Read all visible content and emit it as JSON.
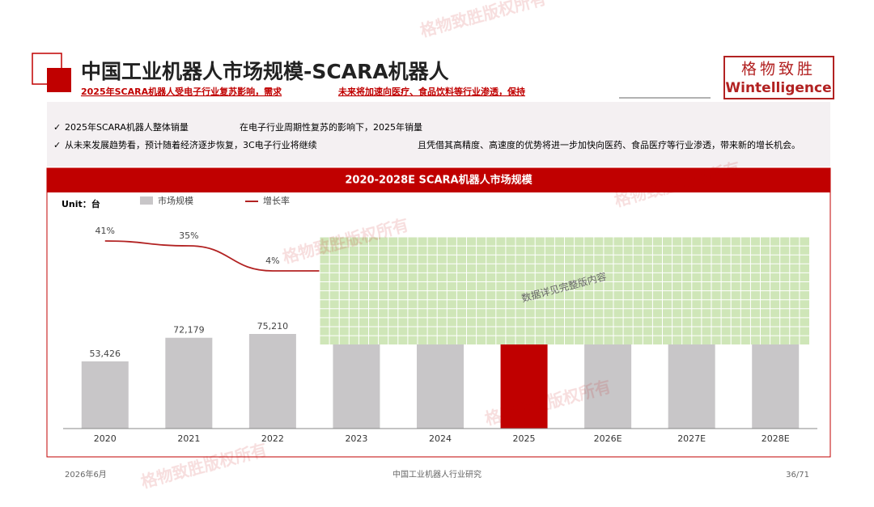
{
  "header": {
    "title": "中国工业机器人市场规模-SCARA机器人",
    "subtitle_left": "2025年SCARA机器人受电子行业复苏影响，需求",
    "subtitle_right": "未来将加速向医疗、食品饮料等行业渗透，保持",
    "logo_cn": "格物致胜",
    "logo_en": "Wintelligence"
  },
  "bullets": [
    {
      "check": "✓",
      "left": "2025年SCARA机器人整体销量",
      "right": "在电子行业周期性复苏的影响下，2025年销量"
    },
    {
      "check": "✓",
      "left": "从未来发展趋势看，预计随着经济逐步恢复，3C电子行业将继续",
      "right": "且凭借其高精度、高速度的优势将进一步加快向医药、食品医疗等行业渗透，带来新的增长机会。"
    }
  ],
  "watermark": "格物致胜版权所有",
  "chart_data": {
    "type": "bar",
    "title": "2020-2028E SCARA机器人市场规模",
    "unit": "Unit：台",
    "categories": [
      "2020",
      "2021",
      "2022",
      "2023",
      "2024",
      "2025",
      "2026E",
      "2027E",
      "2028E"
    ],
    "series": [
      {
        "name": "市场规模",
        "color": "#c8c6c8",
        "highlight_color": "#c00000",
        "highlight": "2025",
        "values": [
          53426,
          72179,
          75210,
          null,
          null,
          null,
          null,
          null,
          null
        ],
        "value_labels": [
          "53,426",
          "72,179",
          "75,210",
          null,
          null,
          null,
          null,
          null,
          null
        ]
      },
      {
        "name": "增长率",
        "type": "line",
        "axis": "y2",
        "color": "#b22222",
        "values": [
          41,
          35,
          4,
          null,
          null,
          null,
          null,
          null,
          null
        ],
        "value_labels": [
          "41%",
          "35%",
          "4%",
          null,
          null,
          null,
          null,
          null,
          null
        ]
      }
    ],
    "ylim": [
      0,
      180000
    ],
    "y2lim": [
      -191,
      89
    ],
    "overlay_text": "数据详见完整版内容"
  },
  "footer": {
    "date": "2026年6月",
    "center": "中国工业机器人行业研究",
    "page": "36/71"
  }
}
